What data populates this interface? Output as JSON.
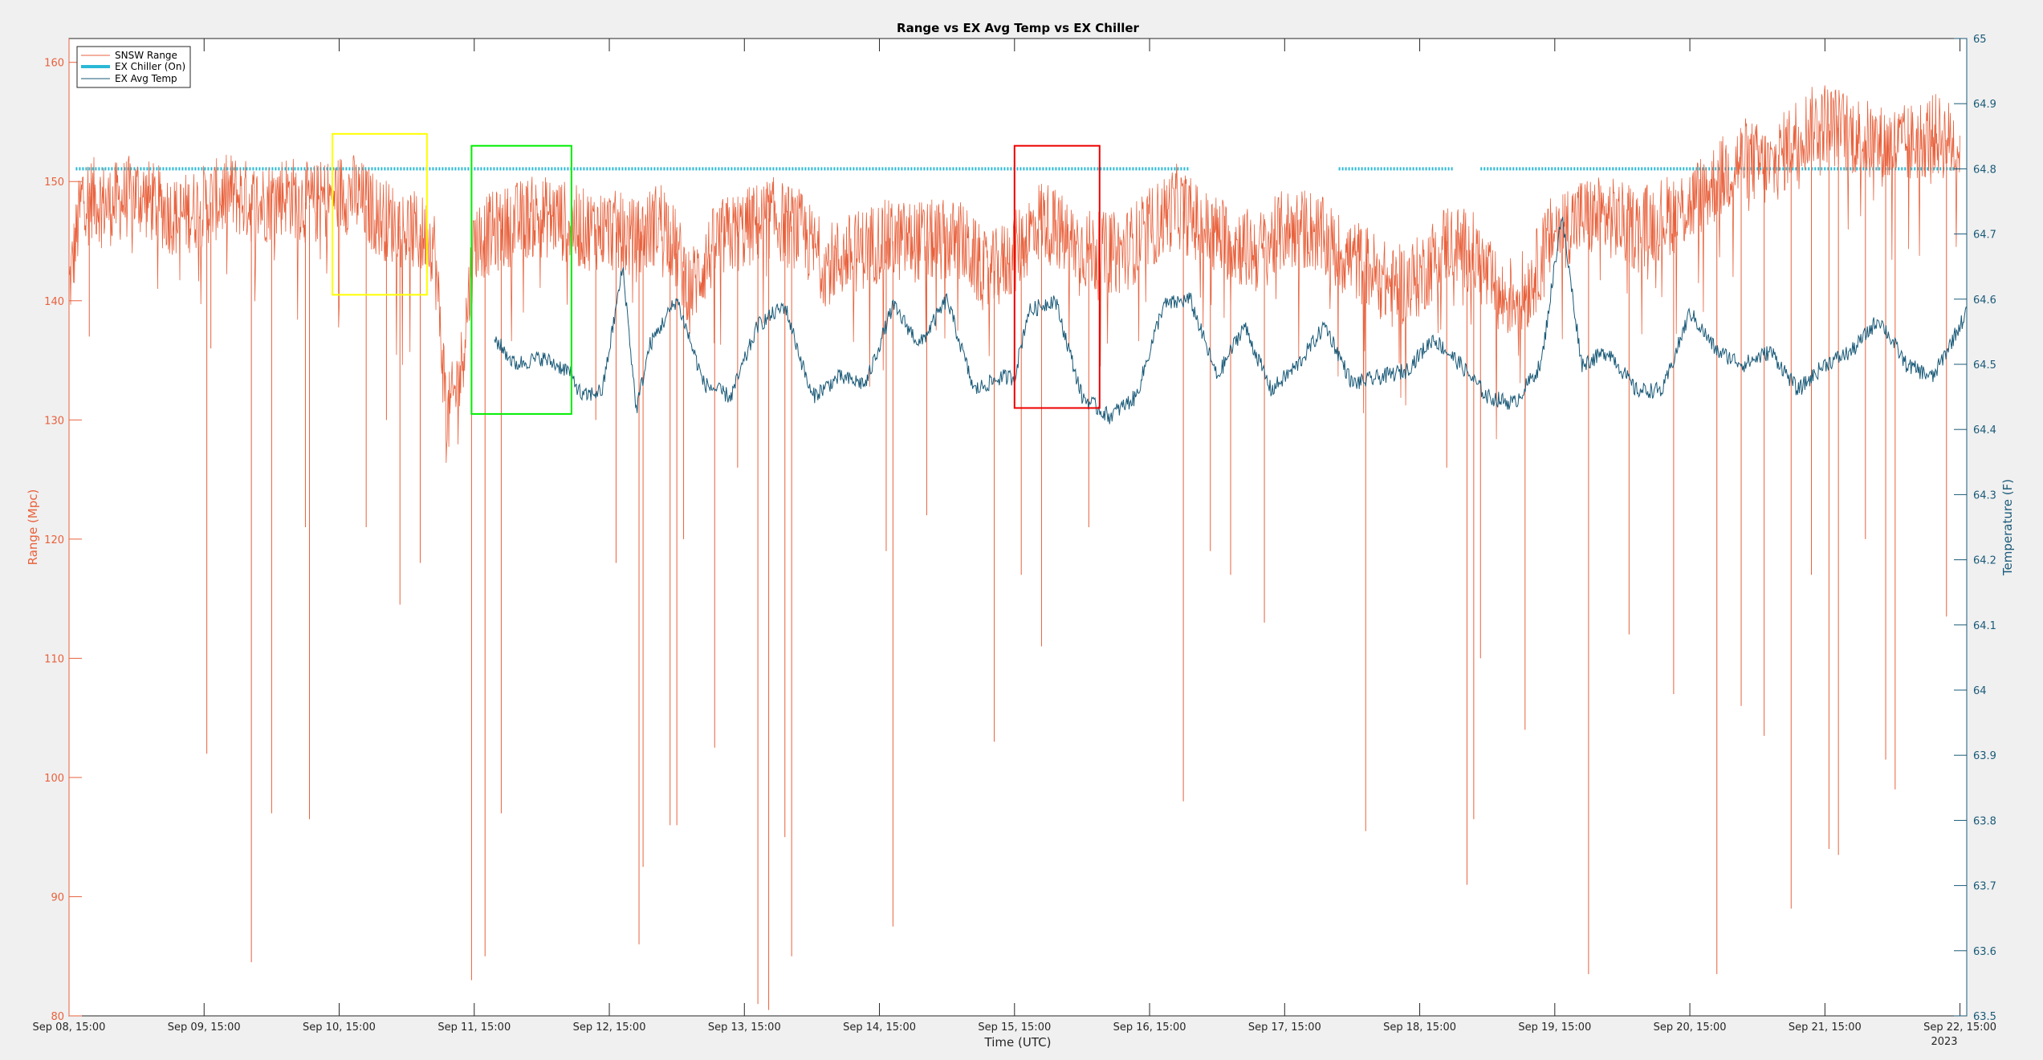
{
  "chart_data": {
    "type": "line",
    "title": "Range vs EX Avg Temp vs EX Chiller",
    "xlabel": "Time (UTC)",
    "ylabel_left": "Range (Mpc)",
    "ylabel_right": "Temperature (F)",
    "year_label": "2023",
    "x_range_days": [
      0,
      14.05
    ],
    "x_ticks": [
      {
        "day": 0,
        "label": "Sep 08, 15:00"
      },
      {
        "day": 1,
        "label": "Sep 09, 15:00"
      },
      {
        "day": 2,
        "label": "Sep 10, 15:00"
      },
      {
        "day": 3,
        "label": "Sep 11, 15:00"
      },
      {
        "day": 4,
        "label": "Sep 12, 15:00"
      },
      {
        "day": 5,
        "label": "Sep 13, 15:00"
      },
      {
        "day": 6,
        "label": "Sep 14, 15:00"
      },
      {
        "day": 7,
        "label": "Sep 15, 15:00"
      },
      {
        "day": 8,
        "label": "Sep 16, 15:00"
      },
      {
        "day": 9,
        "label": "Sep 17, 15:00"
      },
      {
        "day": 10,
        "label": "Sep 18, 15:00"
      },
      {
        "day": 11,
        "label": "Sep 19, 15:00"
      },
      {
        "day": 12,
        "label": "Sep 20, 15:00"
      },
      {
        "day": 13,
        "label": "Sep 21, 15:00"
      },
      {
        "day": 14,
        "label": "Sep 22, 15:00"
      }
    ],
    "y_left": {
      "min": 80,
      "max": 162,
      "ticks": [
        80,
        90,
        100,
        110,
        120,
        130,
        140,
        150,
        160
      ],
      "tick_labels": [
        "80",
        "90",
        "100",
        "110",
        "120",
        "130",
        "140",
        "150",
        "160"
      ]
    },
    "y_right": {
      "min": 63.5,
      "max": 65,
      "ticks": [
        63.5,
        63.6,
        63.7,
        63.8,
        63.9,
        64,
        64.1,
        64.2,
        64.3,
        64.4,
        64.5,
        64.6,
        64.7,
        64.8,
        64.9,
        65
      ],
      "tick_labels": [
        "63.5",
        "63.6",
        "63.7",
        "63.8",
        "63.9",
        "64",
        "64.1",
        "64.2",
        "64.3",
        "64.4",
        "64.5",
        "64.6",
        "64.7",
        "64.8",
        "64.9",
        "65"
      ]
    },
    "legend": {
      "placement": "top-left",
      "entries": [
        {
          "name": "SNSW Range",
          "color": "#e8613c"
        },
        {
          "name": "EX Chiller (On)",
          "color": "#2ab9d6"
        },
        {
          "name": "EX Avg Temp",
          "color": "#1a5a78"
        }
      ]
    },
    "series": [
      {
        "name": "SNSW Range",
        "axis": "left",
        "color": "#e8613c",
        "x": [
          0,
          0.1,
          0.3,
          0.5,
          0.8,
          1.0,
          1.2,
          1.4,
          1.6,
          1.8,
          2.0,
          2.1,
          2.3,
          2.5,
          2.7,
          2.8,
          2.9,
          3.0,
          3.2,
          3.4,
          3.6,
          3.8,
          4.0,
          4.2,
          4.4,
          4.6,
          4.8,
          5.0,
          5.2,
          5.4,
          5.6,
          5.8,
          6.0,
          6.2,
          6.4,
          6.6,
          6.8,
          7.0,
          7.2,
          7.4,
          7.6,
          7.8,
          8.0,
          8.2,
          8.4,
          8.6,
          8.8,
          9.0,
          9.2,
          9.4,
          9.6,
          9.8,
          10.0,
          10.2,
          10.4,
          10.6,
          10.8,
          11.0,
          11.2,
          11.4,
          11.6,
          11.8,
          12.0,
          12.2,
          12.4,
          12.6,
          12.8,
          13.0,
          13.2,
          13.4,
          13.6,
          13.8,
          14.0
        ],
        "y": [
          141,
          149,
          148,
          149,
          147,
          148,
          149,
          148,
          149,
          148,
          149,
          149,
          147,
          146,
          145,
          130,
          134,
          145,
          146,
          147,
          147,
          146,
          146,
          145,
          147,
          141,
          145,
          146,
          147,
          146,
          143,
          144,
          145,
          145,
          145,
          145,
          142,
          144,
          147,
          145,
          144,
          144,
          146,
          148,
          146,
          145,
          144,
          146,
          146,
          144,
          143,
          141,
          142,
          145,
          144,
          140,
          141,
          146,
          147,
          147,
          146,
          147,
          148,
          150,
          152,
          151,
          154,
          155,
          154,
          153,
          153,
          154,
          153
        ],
        "dips": [
          {
            "day": 0.15,
            "y": 137
          },
          {
            "day": 0.55,
            "y": 150
          },
          {
            "day": 1.02,
            "y": 102
          },
          {
            "day": 1.05,
            "y": 136
          },
          {
            "day": 1.35,
            "y": 84.5
          },
          {
            "day": 1.5,
            "y": 97
          },
          {
            "day": 1.75,
            "y": 121
          },
          {
            "day": 1.78,
            "y": 96.5
          },
          {
            "day": 2.2,
            "y": 121
          },
          {
            "day": 2.35,
            "y": 130
          },
          {
            "day": 2.45,
            "y": 114.5
          },
          {
            "day": 2.6,
            "y": 118
          },
          {
            "day": 2.98,
            "y": 83
          },
          {
            "day": 3.08,
            "y": 85
          },
          {
            "day": 3.2,
            "y": 97
          },
          {
            "day": 3.9,
            "y": 130
          },
          {
            "day": 4.05,
            "y": 118
          },
          {
            "day": 4.22,
            "y": 86
          },
          {
            "day": 4.25,
            "y": 92.5
          },
          {
            "day": 4.45,
            "y": 96
          },
          {
            "day": 4.5,
            "y": 96
          },
          {
            "day": 4.55,
            "y": 120
          },
          {
            "day": 4.78,
            "y": 102.5
          },
          {
            "day": 4.95,
            "y": 126
          },
          {
            "day": 5.1,
            "y": 81
          },
          {
            "day": 5.18,
            "y": 80.5
          },
          {
            "day": 5.3,
            "y": 95
          },
          {
            "day": 5.35,
            "y": 85
          },
          {
            "day": 6.05,
            "y": 119
          },
          {
            "day": 6.1,
            "y": 87.5
          },
          {
            "day": 6.35,
            "y": 122
          },
          {
            "day": 6.85,
            "y": 103
          },
          {
            "day": 7.05,
            "y": 117
          },
          {
            "day": 7.2,
            "y": 111
          },
          {
            "day": 7.55,
            "y": 121
          },
          {
            "day": 8.25,
            "y": 98
          },
          {
            "day": 8.45,
            "y": 119
          },
          {
            "day": 8.6,
            "y": 117
          },
          {
            "day": 8.85,
            "y": 113
          },
          {
            "day": 9.6,
            "y": 95.5
          },
          {
            "day": 10.2,
            "y": 126
          },
          {
            "day": 10.35,
            "y": 91
          },
          {
            "day": 10.4,
            "y": 96.5
          },
          {
            "day": 10.45,
            "y": 110
          },
          {
            "day": 10.78,
            "y": 104
          },
          {
            "day": 11.25,
            "y": 83.5
          },
          {
            "day": 11.55,
            "y": 112
          },
          {
            "day": 11.88,
            "y": 107
          },
          {
            "day": 12.2,
            "y": 83.5
          },
          {
            "day": 12.38,
            "y": 106
          },
          {
            "day": 12.55,
            "y": 103.5
          },
          {
            "day": 12.75,
            "y": 89
          },
          {
            "day": 12.9,
            "y": 117
          },
          {
            "day": 13.03,
            "y": 94
          },
          {
            "day": 13.1,
            "y": 93.5
          },
          {
            "day": 13.3,
            "y": 120
          },
          {
            "day": 13.45,
            "y": 101.5
          },
          {
            "day": 13.52,
            "y": 99
          },
          {
            "day": 13.9,
            "y": 113.5
          }
        ]
      },
      {
        "name": "EX Avg Temp",
        "axis": "right",
        "color": "#1a5a78",
        "x": [
          3.15,
          3.3,
          3.5,
          3.7,
          3.8,
          3.95,
          4.1,
          4.2,
          4.3,
          4.5,
          4.7,
          4.9,
          5.1,
          5.3,
          5.5,
          5.7,
          5.9,
          6.1,
          6.3,
          6.5,
          6.7,
          6.9,
          7.0,
          7.1,
          7.3,
          7.5,
          7.7,
          7.9,
          8.1,
          8.3,
          8.5,
          8.7,
          8.9,
          9.1,
          9.3,
          9.5,
          9.7,
          9.9,
          10.1,
          10.3,
          10.5,
          10.7,
          10.9,
          11.05,
          11.2,
          11.4,
          11.6,
          11.8,
          12.0,
          12.2,
          12.4,
          12.6,
          12.8,
          13.0,
          13.2,
          13.4,
          13.6,
          13.8,
          14.05
        ],
        "y": [
          64.54,
          64.5,
          64.51,
          64.49,
          64.45,
          64.46,
          64.65,
          64.43,
          64.53,
          64.6,
          64.47,
          64.45,
          64.56,
          64.59,
          64.45,
          64.48,
          64.47,
          64.59,
          64.53,
          64.6,
          64.46,
          64.48,
          64.48,
          64.58,
          64.6,
          64.45,
          64.42,
          64.45,
          64.59,
          64.6,
          64.48,
          64.56,
          64.46,
          64.5,
          64.56,
          64.47,
          64.48,
          64.49,
          64.54,
          64.5,
          64.45,
          64.44,
          64.5,
          64.73,
          64.5,
          64.52,
          64.46,
          64.46,
          64.58,
          64.52,
          64.5,
          64.52,
          64.46,
          64.5,
          64.52,
          64.57,
          64.5,
          64.48,
          64.58
        ]
      },
      {
        "name": "EX Chiller (On)",
        "axis": "right",
        "color": "#2ab9d6",
        "value": 64.8,
        "on_segments": [
          [
            0.05,
            8.3
          ],
          [
            9.4,
            10.25
          ],
          [
            10.45,
            14.0
          ]
        ]
      }
    ],
    "annotations": [
      {
        "type": "rect",
        "color": "#ffff00",
        "x0": 1.95,
        "x1": 2.65,
        "y0": 140.5,
        "y1": 154
      },
      {
        "type": "rect",
        "color": "#00ee00",
        "x0": 2.98,
        "x1": 3.72,
        "y0": 130.5,
        "y1": 153
      },
      {
        "type": "rect",
        "color": "#ee0000",
        "x0": 7.0,
        "x1": 7.63,
        "y0": 131,
        "y1": 153
      }
    ]
  }
}
